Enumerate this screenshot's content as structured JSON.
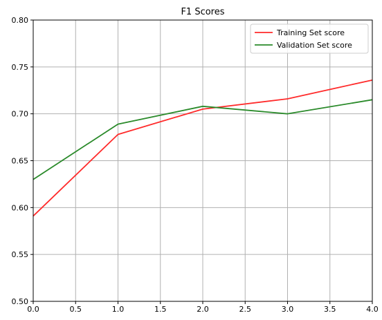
{
  "chart_data": {
    "type": "line",
    "title": "F1 Scores",
    "xlabel": "",
    "ylabel": "",
    "xlim": [
      0.0,
      4.0
    ],
    "ylim": [
      0.5,
      0.8
    ],
    "x_ticks": [
      "0.0",
      "0.5",
      "1.0",
      "1.5",
      "2.0",
      "2.5",
      "3.0",
      "3.5",
      "4.0"
    ],
    "y_ticks": [
      "0.50",
      "0.55",
      "0.60",
      "0.65",
      "0.70",
      "0.75",
      "0.80"
    ],
    "grid": true,
    "legend_position": "top-right",
    "x": [
      0,
      1,
      2,
      3,
      4
    ],
    "series": [
      {
        "name": "Training Set score",
        "color": "#ff2a2a",
        "values": [
          0.591,
          0.678,
          0.705,
          0.716,
          0.736
        ]
      },
      {
        "name": "Validation Set score",
        "color": "#2a8a2a",
        "values": [
          0.63,
          0.689,
          0.708,
          0.7,
          0.715
        ]
      }
    ]
  }
}
